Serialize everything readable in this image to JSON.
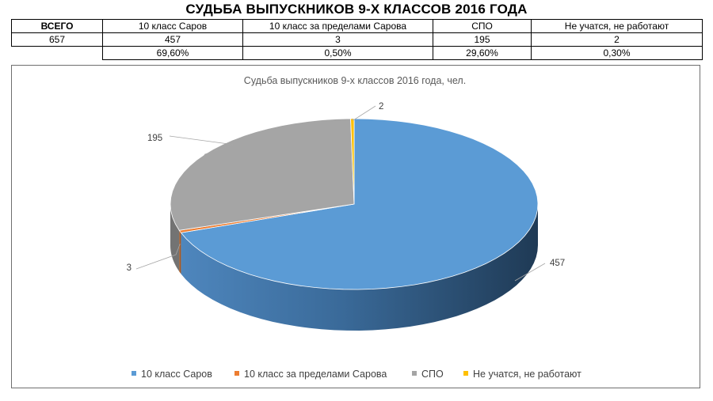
{
  "page_title": "СУДЬБА ВЫПУСКНИКОВ 9-Х КЛАССОВ 2016 ГОДА",
  "table": {
    "headers": [
      "ВСЕГО",
      "10 класс Саров",
      "10 класс за пределами Сарова",
      "СПО",
      "Не учатся, не работают"
    ],
    "counts": [
      "657",
      "457",
      "3",
      "195",
      "2"
    ],
    "percents": [
      "",
      "69,60%",
      "0,50%",
      "29,60%",
      "0,30%"
    ]
  },
  "chart_data": {
    "type": "pie",
    "title": "Судьба выпускников 9-х классов 2016 года, чел.",
    "categories": [
      "10 класс Саров",
      "10 класс за пределами Сарова",
      "СПО",
      "Не учатся, не работают"
    ],
    "values": [
      457,
      3,
      195,
      2
    ],
    "data_labels": [
      "457",
      "3",
      "195",
      "2"
    ],
    "colors": [
      "#5b9bd5",
      "#ed7d31",
      "#a5a5a5",
      "#ffc000"
    ],
    "legend_position": "bottom",
    "three_d": true
  }
}
